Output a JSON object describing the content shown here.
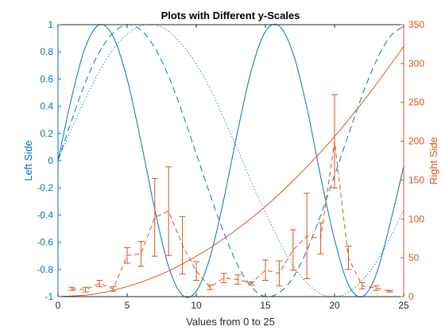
{
  "chart_data": {
    "type": "line",
    "title": "Plots with Different y-Scales",
    "xlabel": "Values from 0 to 25",
    "xlim": [
      0,
      25
    ],
    "x_ticks": [
      0,
      5,
      10,
      15,
      20,
      25
    ],
    "left_axis": {
      "label": "Left Side",
      "ylim": [
        -1,
        1
      ],
      "ticks": [
        -1,
        -0.8,
        -0.6,
        -0.4,
        -0.2,
        0,
        0.2,
        0.4,
        0.6,
        0.8,
        1
      ],
      "tick_labels": [
        "-1",
        "-0.8",
        "-0.6",
        "-0.4",
        "-0.2",
        "0",
        "0.2",
        "0.4",
        "0.6",
        "0.8",
        "1"
      ],
      "color": "#0072BD"
    },
    "right_axis": {
      "label": "Right Side",
      "ylim": [
        0,
        350
      ],
      "ticks": [
        0,
        50,
        100,
        150,
        200,
        250,
        300,
        350
      ],
      "tick_labels": [
        "0",
        "50",
        "100",
        "150",
        "200",
        "250",
        "300",
        "350"
      ],
      "color": "#D95319"
    },
    "series_left": [
      {
        "style": "solid",
        "x": [
          0,
          1,
          2,
          3,
          4,
          5,
          6,
          7,
          8,
          9,
          10,
          11,
          12,
          13,
          14,
          15,
          16,
          17,
          18,
          19,
          20,
          21,
          22,
          23,
          24,
          25
        ],
        "y": [
          0,
          0.47,
          0.84,
          1.0,
          0.91,
          0.6,
          0.14,
          -0.36,
          -0.78,
          -0.99,
          -0.96,
          -0.71,
          -0.28,
          0.22,
          0.67,
          0.95,
          0.99,
          0.79,
          0.39,
          -0.12,
          -0.58,
          -0.91,
          -1.0,
          -0.84,
          -0.47,
          -0.04
        ]
      },
      {
        "style": "dashed",
        "x": [
          0,
          1,
          2,
          3,
          4,
          5,
          6,
          7,
          8,
          9,
          10,
          11,
          12,
          13,
          14,
          15,
          16,
          17,
          18,
          19,
          20,
          21,
          22,
          23,
          24,
          25
        ],
        "y": [
          0,
          0.3,
          0.58,
          0.8,
          0.94,
          1.0,
          0.96,
          0.83,
          0.62,
          0.35,
          0.05,
          -0.25,
          -0.53,
          -0.77,
          -0.93,
          -1.0,
          -0.97,
          -0.86,
          -0.66,
          -0.4,
          -0.11,
          0.19,
          0.48,
          0.73,
          0.91,
          0.99
        ]
      },
      {
        "style": "dotted",
        "x": [
          0,
          1,
          2,
          3,
          4,
          5,
          6,
          7,
          8,
          9,
          10,
          11,
          12,
          13,
          14,
          15,
          16,
          17,
          18,
          19,
          20,
          21,
          22,
          23,
          24,
          25
        ],
        "y": [
          0,
          0.24,
          0.46,
          0.66,
          0.82,
          0.93,
          0.99,
          1.0,
          0.95,
          0.85,
          0.71,
          0.53,
          0.31,
          0.08,
          -0.16,
          -0.38,
          -0.59,
          -0.77,
          -0.9,
          -0.98,
          -1.0,
          -0.97,
          -0.88,
          -0.75,
          -0.57,
          -0.36
        ]
      }
    ],
    "series_right": [
      {
        "style": "solid",
        "x": [
          0,
          2.5,
          5,
          7.5,
          10,
          12.5,
          15,
          17.5,
          20,
          22.5,
          25
        ],
        "y": [
          0,
          3,
          13,
          29,
          52,
          81,
          116,
          158,
          206,
          261,
          322
        ]
      },
      {
        "style": "dashed-errorbar",
        "x": [
          1,
          2,
          3,
          4,
          5,
          6,
          7,
          8,
          9,
          10,
          11,
          12,
          13,
          14,
          15,
          16,
          17,
          18,
          19,
          20,
          21,
          22,
          23,
          24
        ],
        "y": [
          10,
          9,
          17,
          10,
          53,
          55,
          102,
          110,
          66,
          33,
          12,
          24,
          22,
          17,
          34,
          30,
          60,
          78,
          75,
          200,
          50,
          14,
          11,
          7
        ],
        "err": [
          2,
          3,
          4,
          3,
          10,
          16,
          50,
          57,
          37,
          12,
          3,
          6,
          6,
          2,
          13,
          16,
          26,
          55,
          20,
          60,
          15,
          4,
          3,
          1
        ]
      }
    ]
  }
}
